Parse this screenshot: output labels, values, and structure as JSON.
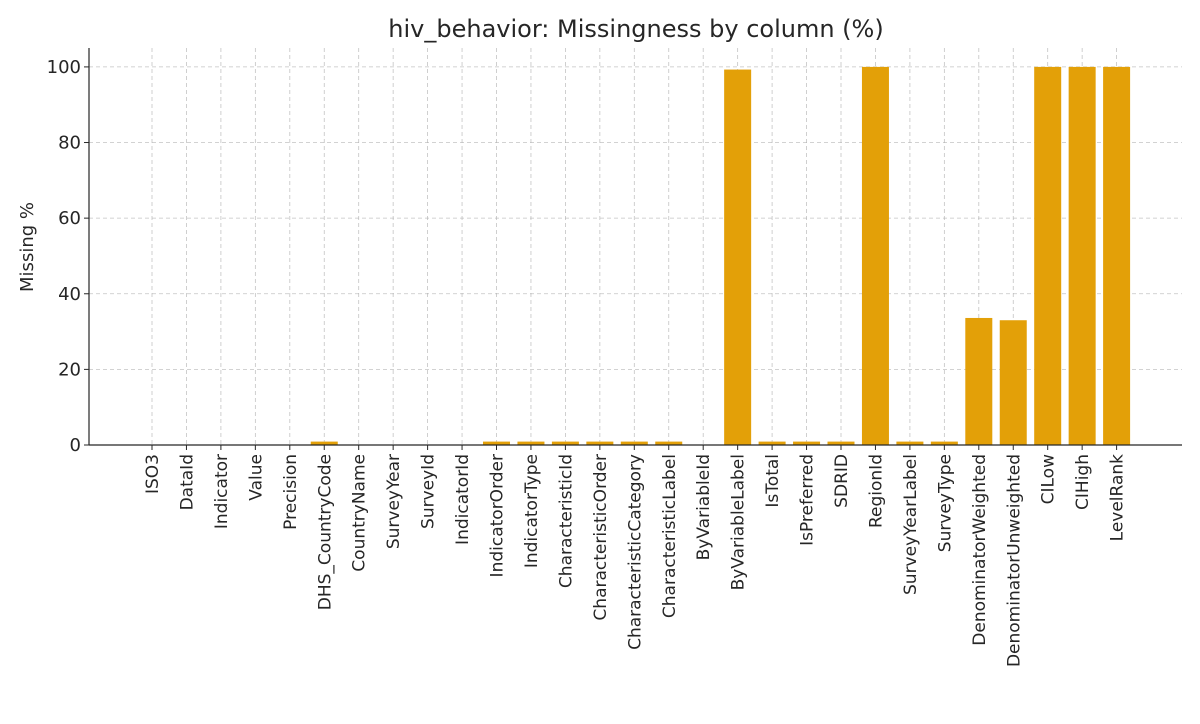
{
  "chart_data": {
    "type": "bar",
    "title": "hiv_behavior: Missingness by column (%)",
    "xlabel": "",
    "ylabel": "Missing %",
    "ylim": [
      0,
      105
    ],
    "yticks": [
      0,
      20,
      40,
      60,
      80,
      100
    ],
    "grid": true,
    "bar_color": "#e3a008",
    "categories": [
      "ISO3",
      "DataId",
      "Indicator",
      "Value",
      "Precision",
      "DHS_CountryCode",
      "CountryName",
      "SurveyYear",
      "SurveyId",
      "IndicatorId",
      "IndicatorOrder",
      "IndicatorType",
      "CharacteristicId",
      "CharacteristicOrder",
      "CharacteristicCategory",
      "CharacteristicLabel",
      "ByVariableId",
      "ByVariableLabel",
      "IsTotal",
      "IsPreferred",
      "SDRID",
      "RegionId",
      "SurveyYearLabel",
      "SurveyType",
      "DenominatorWeighted",
      "DenominatorUnweighted",
      "CILow",
      "CIHigh",
      "LevelRank"
    ],
    "values": [
      0,
      0,
      0,
      0,
      0,
      0.9,
      0,
      0,
      0,
      0,
      0.9,
      0.9,
      0.9,
      0.9,
      0.9,
      0.9,
      0,
      99.3,
      0.9,
      0.9,
      0.9,
      100,
      0.9,
      0.9,
      33.6,
      33.0,
      100,
      100,
      100
    ]
  }
}
